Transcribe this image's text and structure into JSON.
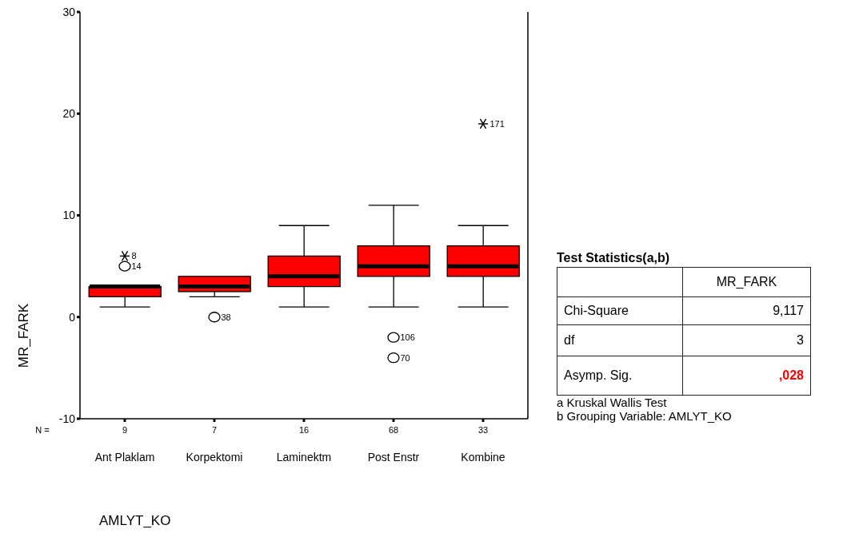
{
  "chart_data": [
    {
      "type": "box",
      "categories": [
        "Ant Plaklam",
        "Korpektomi",
        "Laminektm",
        "Post Enstr",
        "Kombine"
      ],
      "xlabel": "AMLYT_KO",
      "ylabel": "MR_FARK",
      "ylim": [
        -10,
        30
      ],
      "yticks": [
        -10,
        0,
        10,
        20,
        30
      ],
      "series": [
        {
          "type": "box",
          "color": "#ff0000",
          "boxes": [
            {
              "low": 1,
              "q1": 2,
              "median": 3,
              "q3": 3,
              "high": 3,
              "outliers": [
                5
              ]
            },
            {
              "low": 2,
              "q1": 2.5,
              "median": 3,
              "q3": 4,
              "high": 4,
              "outliers": [
                0
              ]
            },
            {
              "low": 1,
              "q1": 3,
              "median": 4,
              "q3": 6,
              "high": 9
            },
            {
              "low": 1,
              "q1": 4,
              "median": 5,
              "q3": 7,
              "high": 11,
              "outliers": [
                -2,
                -4
              ]
            },
            {
              "low": 1,
              "q1": 4,
              "median": 5,
              "q3": 7,
              "high": 9
            }
          ]
        },
        {
          "type": "scatter",
          "color": "#000000",
          "marker": "cross",
          "x": [
            "Ant Plaklam",
            "Kombine"
          ],
          "values": [
            6,
            19
          ]
        }
      ],
      "annotations": [
        "N =",
        {
          "text": "9",
          "x": "Ant Plaklam"
        },
        {
          "text": "7",
          "x": "Korpektomi"
        },
        {
          "text": "16",
          "x": "Laminektm"
        },
        {
          "text": "68",
          "x": "Post Enstr"
        },
        {
          "text": "33",
          "x": "Kombine"
        },
        {
          "text": "8",
          "x": "Ant Plaklam",
          "y": 6
        },
        "14",
        "38",
        "106",
        "70",
        {
          "text": "171",
          "x": "Kombine",
          "y": 19
        }
      ]
    },
    {
      "type": "other",
      "title": "Test Statistics(a,b)",
      "annotations": [
        "MR_FARK",
        "Chi-Square",
        "9,117",
        "df",
        "3",
        "Asymp. Sig.",
        ",028",
        "a Kruskal Wallis Test",
        "b Grouping Variable: AMLYT_KO"
      ]
    }
  ]
}
